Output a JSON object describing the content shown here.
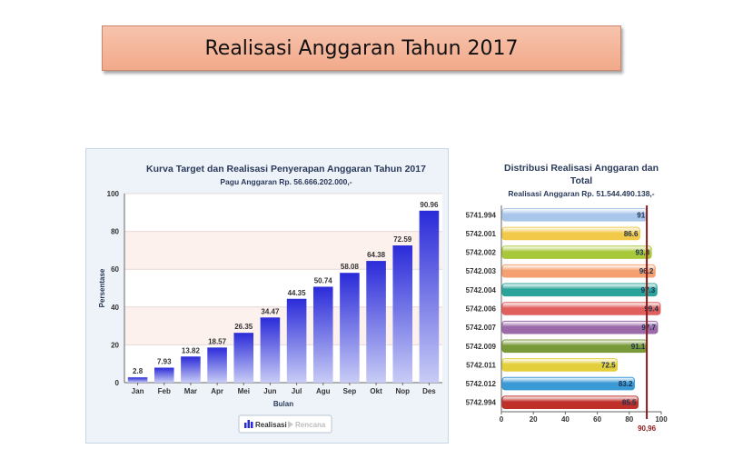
{
  "page_title": "Realisasi Anggaran Tahun 2017",
  "chart_data": [
    {
      "type": "bar",
      "title": "Kurva Target dan Realisasi Penyerapan Anggaran Tahun 2017",
      "subtitle": "Pagu Anggaran Rp. 56.666.202.000,-",
      "xlabel": "Bulan",
      "ylabel": "Persentase",
      "ylim": [
        0,
        100
      ],
      "yticks": [
        0,
        20,
        40,
        60,
        80,
        100
      ],
      "categories": [
        "Jan",
        "Feb",
        "Mar",
        "Apr",
        "Mei",
        "Jun",
        "Jul",
        "Agu",
        "Sep",
        "Okt",
        "Nop",
        "Des"
      ],
      "series": [
        {
          "name": "Realisasi",
          "values": [
            2.8,
            7.93,
            13.82,
            18.57,
            26.35,
            34.47,
            44.35,
            50.74,
            58.08,
            64.38,
            72.59,
            90.96
          ],
          "color": "#2b2bd9"
        }
      ],
      "legend": {
        "position": "bottom",
        "items": [
          {
            "name": "Realisasi",
            "active": true
          },
          {
            "name": "Rencana",
            "active": false
          }
        ]
      },
      "grid": true
    },
    {
      "type": "bar",
      "orientation": "horizontal",
      "title": "Distribusi Realisasi Anggaran dan Total",
      "subtitle": "Realisasi Anggaran Rp. 51.544.490.138,-",
      "xlim": [
        0,
        100
      ],
      "xticks": [
        0,
        20,
        40,
        60,
        80,
        100
      ],
      "categories": [
        "5741.994",
        "5742.001",
        "5742.002",
        "5742.003",
        "5742.004",
        "5742.006",
        "5742.007",
        "5742.009",
        "5742.011",
        "5742.012",
        "5742.994"
      ],
      "values": [
        91,
        86.6,
        93.8,
        96.2,
        97.3,
        99.4,
        97.7,
        91.1,
        72.5,
        83.2,
        85.5
      ],
      "value_labels": [
        "91",
        "86.6",
        "93.8",
        "96.2",
        "97.3",
        "99.4",
        "97.7",
        "91.1",
        "72.5",
        "83.2",
        "85.5"
      ],
      "colors": [
        "#a9c6ea",
        "#f3c94a",
        "#a8c83a",
        "#f4a070",
        "#2aa39a",
        "#e0605e",
        "#9b6aa8",
        "#7a9a3a",
        "#e3cf3c",
        "#3a9ad6",
        "#c0302a"
      ],
      "reference_line": {
        "value": 90.96,
        "label": "90,96",
        "color": "#8b1a1a"
      }
    }
  ]
}
